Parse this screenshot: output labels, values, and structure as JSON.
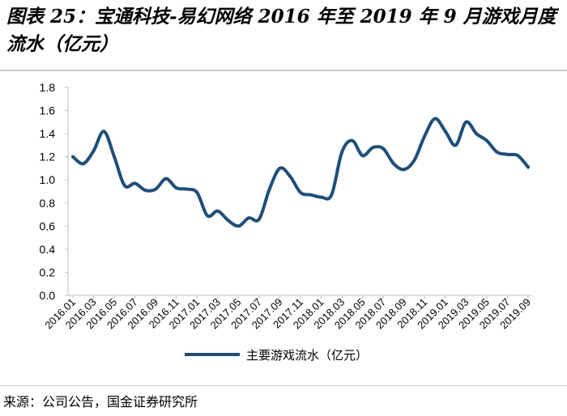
{
  "figure": {
    "title": "图表 25：宝通科技-易幻网络 2016 年至 2019 年 9 月游戏月度流水（亿元）",
    "source": "来源：公司公告，国金证券研究所"
  },
  "colors": {
    "line": "#1f4e79",
    "axis": "#bfbfbf",
    "text": "#000000"
  },
  "chart_data": {
    "type": "line",
    "title": "",
    "xlabel": "",
    "ylabel": "",
    "ylim": [
      0,
      1.8
    ],
    "yticks": [
      "0.0",
      "0.2",
      "0.4",
      "0.6",
      "0.8",
      "1.0",
      "1.2",
      "1.4",
      "1.6",
      "1.8"
    ],
    "grid": false,
    "legend_position": "bottom",
    "categories": [
      "2016.01",
      "2016.02",
      "2016.03",
      "2016.04",
      "2016.05",
      "2016.06",
      "2016.07",
      "2016.08",
      "2016.09",
      "2016.10",
      "2016.11",
      "2016.12",
      "2017.01",
      "2017.02",
      "2017.03",
      "2017.04",
      "2017.05",
      "2017.06",
      "2017.07",
      "2017.08",
      "2017.09",
      "2017.10",
      "2017.11",
      "2017.12",
      "2018.01",
      "2018.02",
      "2018.03",
      "2018.04",
      "2018.05",
      "2018.06",
      "2018.07",
      "2018.08",
      "2018.09",
      "2018.10",
      "2018.11",
      "2018.12",
      "2019.01",
      "2019.02",
      "2019.03",
      "2019.04",
      "2019.05",
      "2019.06",
      "2019.07",
      "2019.08",
      "2019.09"
    ],
    "tick_labels": [
      "2016.01",
      "2016.03",
      "2016.05",
      "2016.07",
      "2016.09",
      "2016.11",
      "2017.01",
      "2017.03",
      "2017.05",
      "2017.07",
      "2017.09",
      "2017.11",
      "2018.01",
      "2018.03",
      "2018.05",
      "2018.07",
      "2018.09",
      "2018.11",
      "2019.01",
      "2019.03",
      "2019.05",
      "2019.07",
      "2019.09"
    ],
    "series": [
      {
        "name": "主要游戏流水（亿元）",
        "values": [
          1.2,
          1.14,
          1.25,
          1.42,
          1.2,
          0.95,
          0.97,
          0.91,
          0.92,
          1.01,
          0.93,
          0.92,
          0.89,
          0.69,
          0.73,
          0.65,
          0.6,
          0.67,
          0.66,
          0.92,
          1.1,
          1.03,
          0.89,
          0.87,
          0.85,
          0.87,
          1.24,
          1.34,
          1.21,
          1.28,
          1.27,
          1.14,
          1.09,
          1.17,
          1.38,
          1.53,
          1.42,
          1.3,
          1.5,
          1.4,
          1.34,
          1.24,
          1.22,
          1.21,
          1.11
        ]
      }
    ]
  }
}
